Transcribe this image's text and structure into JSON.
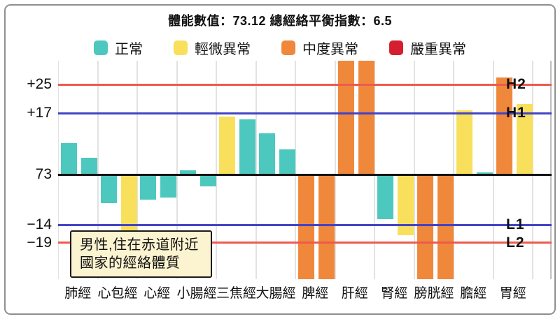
{
  "header": {
    "title": "體能數值：73.12 總經絡平衡指數：6.5"
  },
  "legend": {
    "items": [
      {
        "label": "正常",
        "status": "normal",
        "color": "#4dc8bf"
      },
      {
        "label": "輕微異常",
        "status": "mild",
        "color": "#f9e05c"
      },
      {
        "label": "中度異常",
        "status": "moderate",
        "color": "#ef883b"
      },
      {
        "label": "嚴重異常",
        "status": "severe",
        "color": "#d41f30"
      }
    ]
  },
  "tooltip": {
    "line1": "男性,住在赤道附近",
    "line2": "國家的經絡體質"
  },
  "chart_data": {
    "type": "bar",
    "title": "體能數值：73.12 總經絡平衡指數：6.5",
    "legend_position": "top",
    "grid": "vertical",
    "baseline_value": 73,
    "ylim_units_from_baseline": [
      -29,
      32
    ],
    "y_axis_ticks": [
      {
        "text": "+25",
        "value": 25
      },
      {
        "text": "+17",
        "value": 17
      },
      {
        "text": "73",
        "value": 0
      },
      {
        "text": "−14",
        "value": -14
      },
      {
        "text": "−19",
        "value": -19
      }
    ],
    "reference_lines": [
      {
        "label": "H2",
        "value": 25,
        "color": "#ed5a4e"
      },
      {
        "label": "H1",
        "value": 17,
        "color": "#4343c6"
      },
      {
        "label": "",
        "value": 0,
        "color": "#141414"
      },
      {
        "label": "L1",
        "value": -14,
        "color": "#4343c6"
      },
      {
        "label": "L2",
        "value": -19,
        "color": "#ed5a4e"
      }
    ],
    "categories": [
      "肺經",
      "心包經",
      "心經",
      "小腸經",
      "三焦經",
      "大腸經",
      "脾經",
      "肝經",
      "腎經",
      "膀胱經",
      "膽經",
      "胃經"
    ],
    "series_note": "two bars (left/right) per meridian; clipped bars exceed plot range",
    "groups": [
      {
        "name": "肺經",
        "bars": [
          {
            "value": 8.8,
            "status": "normal"
          },
          {
            "value": 4.7,
            "status": "normal"
          }
        ]
      },
      {
        "name": "心包經",
        "bars": [
          {
            "value": -8.0,
            "status": "normal"
          },
          {
            "value": -15.5,
            "status": "mild"
          }
        ]
      },
      {
        "name": "心經",
        "bars": [
          {
            "value": -6.9,
            "status": "normal"
          },
          {
            "value": -6.5,
            "status": "normal"
          }
        ]
      },
      {
        "name": "小腸經",
        "bars": [
          {
            "value": 1.2,
            "status": "normal"
          },
          {
            "value": -3.3,
            "status": "normal"
          }
        ]
      },
      {
        "name": "三焦經",
        "bars": [
          {
            "value": 16.1,
            "status": "mild"
          },
          {
            "value": 15.3,
            "status": "normal"
          }
        ]
      },
      {
        "name": "大腸經",
        "bars": [
          {
            "value": 11.4,
            "status": "normal"
          },
          {
            "value": 7.0,
            "status": "normal"
          }
        ]
      },
      {
        "name": "脾經",
        "bars": [
          {
            "value": -32,
            "status": "moderate",
            "clipped": true
          },
          {
            "value": -32,
            "status": "moderate",
            "clipped": true
          }
        ]
      },
      {
        "name": "肝經",
        "bars": [
          {
            "value": 32,
            "status": "moderate",
            "clipped": true
          },
          {
            "value": 32,
            "status": "moderate",
            "clipped": true
          }
        ]
      },
      {
        "name": "腎經",
        "bars": [
          {
            "value": -12.5,
            "status": "normal"
          },
          {
            "value": -16.9,
            "status": "mild"
          }
        ]
      },
      {
        "name": "膀胱經",
        "bars": [
          {
            "value": -32,
            "status": "moderate",
            "clipped": true
          },
          {
            "value": -32,
            "status": "moderate",
            "clipped": true
          }
        ]
      },
      {
        "name": "膽經",
        "bars": [
          {
            "value": 17.8,
            "status": "mild"
          },
          {
            "value": 0.5,
            "status": "normal"
          }
        ]
      },
      {
        "name": "胃經",
        "bars": [
          {
            "value": 27.0,
            "status": "moderate"
          },
          {
            "value": 19.6,
            "status": "mild"
          }
        ]
      }
    ]
  }
}
